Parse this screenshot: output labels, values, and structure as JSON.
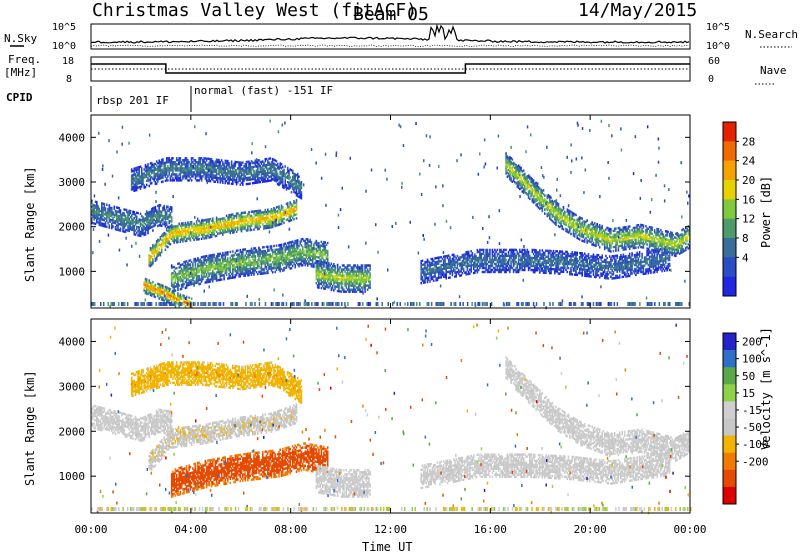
{
  "header": {
    "title": "Christmas Valley West (fitACF)",
    "beam": "Beam 05",
    "date": "14/May/2015"
  },
  "noise_panel": {
    "left_label": "N.Sky",
    "right_label": "N.Search",
    "left_ticks": [
      "10^5",
      "10^0"
    ],
    "right_ticks": [
      "10^5",
      "10^0"
    ]
  },
  "freq_panel": {
    "left_label_1": "Freq.",
    "left_label_2": "[MHz]",
    "right_label": "Nave",
    "left_ticks": [
      "18",
      "8"
    ],
    "right_ticks": [
      "60",
      "0"
    ]
  },
  "cpid": {
    "label": "CPID",
    "programs": [
      {
        "name": "rbsp 201 IF",
        "start_hour": 0.0
      },
      {
        "name": "normal (fast) -151 IF",
        "start_hour": 4.0
      }
    ]
  },
  "colors": {
    "power": [
      "#1f27e0",
      "#2a4cc4",
      "#3a6e9a",
      "#4f9a6a",
      "#7fc93f",
      "#e6d200",
      "#f5a300",
      "#f06a00",
      "#e32000"
    ],
    "velocity": [
      "#2323c8",
      "#2f6fc8",
      "#5aa84a",
      "#8fd24a",
      "#cfcfcf",
      "#c7c7c7",
      "#f2b400",
      "#f07b00",
      "#e64a00",
      "#dd0000"
    ]
  },
  "chart_data": [
    {
      "type": "heatmap",
      "name": "Power",
      "ylabel": "Slant Range [km]",
      "y_ticks": [
        "1000",
        "2000",
        "3000",
        "4000"
      ],
      "ylim": [
        180,
        4500
      ],
      "xlim": [
        0,
        24
      ],
      "colorbar_label": "Power [dB]",
      "colorbar_ticks": [
        "4",
        "8",
        "12",
        "16",
        "20",
        "24",
        "28"
      ],
      "colorbar_range": [
        0,
        30
      ],
      "bands": [
        {
          "t": [
            0.0,
            2.0,
            2.7,
            3.2
          ],
          "r": [
            2350,
            2050,
            2250,
            2200
          ],
          "w": 260,
          "p": 11
        },
        {
          "t": [
            1.6,
            3.0,
            4.5,
            6.0,
            7.2,
            8.4
          ],
          "r": [
            3050,
            3300,
            3300,
            3200,
            3300,
            2900
          ],
          "w": 260,
          "p": 10
        },
        {
          "t": [
            2.3,
            3.2,
            4.5,
            5.8,
            7.2,
            8.2
          ],
          "r": [
            1300,
            1850,
            1950,
            2100,
            2200,
            2400
          ],
          "w": 210,
          "p": 22
        },
        {
          "t": [
            2.1,
            3.0,
            3.5,
            4.0
          ],
          "r": [
            700,
            500,
            350,
            250
          ],
          "w": 170,
          "p": 24
        },
        {
          "t": [
            3.2,
            4.5,
            6.0,
            7.5,
            8.5,
            9.5
          ],
          "r": [
            850,
            1050,
            1200,
            1300,
            1450,
            1350
          ],
          "w": 300,
          "p": 15
        },
        {
          "t": [
            9.0,
            10.0,
            11.2
          ],
          "r": [
            950,
            850,
            850
          ],
          "w": 300,
          "p": 17
        },
        {
          "t": [
            13.2,
            15.5,
            17.6,
            19.2,
            20.8,
            23.2
          ],
          "r": [
            1000,
            1250,
            1250,
            1200,
            1100,
            1300
          ],
          "w": 260,
          "p": 9
        },
        {
          "t": [
            16.6,
            17.6,
            18.6,
            19.6,
            20.8,
            22.0,
            23.4,
            24.0
          ],
          "r": [
            3400,
            2850,
            2300,
            1950,
            1700,
            1800,
            1600,
            1800
          ],
          "w": 250,
          "p": 18
        }
      ]
    },
    {
      "type": "heatmap",
      "name": "Velocity",
      "ylabel": "Slant Range [km]",
      "y_ticks": [
        "1000",
        "2000",
        "3000",
        "4000"
      ],
      "ylim": [
        180,
        4500
      ],
      "xlim": [
        0,
        24
      ],
      "xlabel": "Time UT",
      "x_ticks": [
        "00:00",
        "04:00",
        "08:00",
        "12:00",
        "16:00",
        "20:00",
        "00:00"
      ],
      "colorbar_label": "Velocity [m s^-1]",
      "colorbar_ticks": [
        "200",
        "100",
        "50",
        "15",
        "-15",
        "-50",
        "-100",
        "-200"
      ],
      "colorbar_range": [
        -250,
        250
      ],
      "bands": [
        {
          "t": [
            0.0,
            2.0,
            2.7,
            3.2
          ],
          "r": [
            2350,
            2050,
            2250,
            2200
          ],
          "w": 260,
          "v": 0
        },
        {
          "t": [
            1.6,
            3.0,
            4.5,
            6.0,
            7.2,
            8.4
          ],
          "r": [
            3050,
            3300,
            3300,
            3200,
            3300,
            2900
          ],
          "w": 260,
          "v": -35
        },
        {
          "t": [
            2.3,
            3.2,
            4.5,
            5.8,
            7.2,
            8.2
          ],
          "r": [
            1300,
            1850,
            1950,
            2100,
            2200,
            2400
          ],
          "w": 210,
          "v": -10
        },
        {
          "t": [
            3.2,
            4.5,
            6.0,
            7.5,
            8.5,
            9.5
          ],
          "r": [
            850,
            1050,
            1200,
            1300,
            1450,
            1350
          ],
          "w": 300,
          "v": -120
        },
        {
          "t": [
            9.0,
            10.0,
            11.2
          ],
          "r": [
            950,
            850,
            850
          ],
          "w": 300,
          "v": 0
        },
        {
          "t": [
            13.2,
            15.5,
            17.6,
            19.2,
            20.8,
            23.2
          ],
          "r": [
            1000,
            1250,
            1250,
            1200,
            1100,
            1300
          ],
          "w": 260,
          "v": 0
        },
        {
          "t": [
            16.6,
            17.6,
            18.6,
            19.6,
            20.8,
            22.0,
            23.4,
            24.0
          ],
          "r": [
            3400,
            2850,
            2300,
            1950,
            1700,
            1800,
            1600,
            1800
          ],
          "w": 250,
          "v": 0
        }
      ]
    }
  ]
}
